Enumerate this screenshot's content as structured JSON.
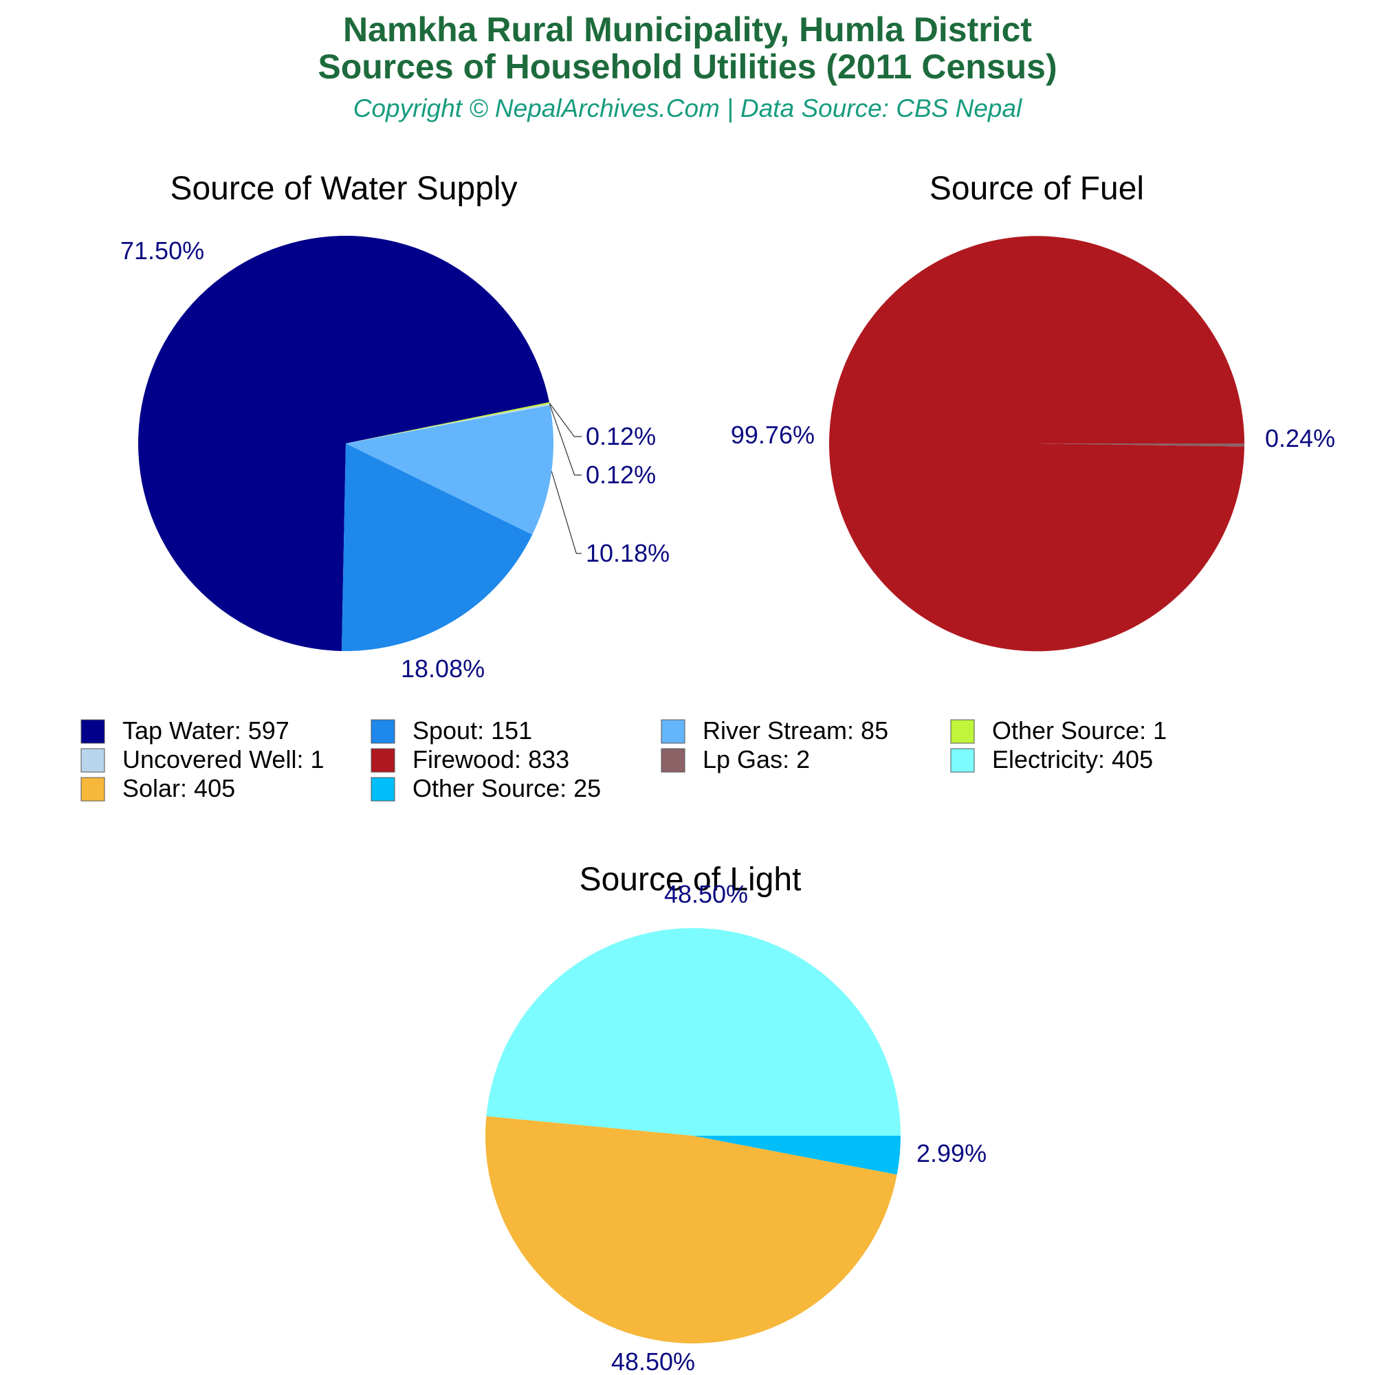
{
  "header": {
    "title_line1": "Namkha Rural Municipality, Humla District",
    "title_line2": "Sources of Household Utilities (2011 Census)",
    "subtitle": "Copyright © NepalArchives.Com | Data Source: CBS Nepal"
  },
  "chart_data": [
    {
      "type": "pie",
      "title": "Source of Water Supply",
      "slices": [
        {
          "name": "Tap Water",
          "value": 597,
          "percent_label": "71.50%",
          "color": "#00008b"
        },
        {
          "name": "Spout",
          "value": 151,
          "percent_label": "18.08%",
          "color": "#1e88eb"
        },
        {
          "name": "River Stream",
          "value": 85,
          "percent_label": "10.18%",
          "color": "#64b5fb"
        },
        {
          "name": "Uncovered Well",
          "value": 1,
          "percent_label": "0.12%",
          "color": "#b9d5ee"
        },
        {
          "name": "Other Source",
          "value": 1,
          "percent_label": "0.12%",
          "color": "#bff53a"
        }
      ]
    },
    {
      "type": "pie",
      "title": "Source of Fuel",
      "slices": [
        {
          "name": "Firewood",
          "value": 833,
          "percent_label": "99.76%",
          "color": "#b0181f"
        },
        {
          "name": "Lp Gas",
          "value": 2,
          "percent_label": "0.24%",
          "color": "#8b6266"
        }
      ]
    },
    {
      "type": "pie",
      "title": "Source of Light",
      "slices": [
        {
          "name": "Electricity",
          "value": 405,
          "percent_label": "48.50%",
          "color": "#7cfcfe"
        },
        {
          "name": "Solar",
          "value": 405,
          "percent_label": "48.50%",
          "color": "#f6b73a"
        },
        {
          "name": "Other Source",
          "value": 25,
          "percent_label": "2.99%",
          "color": "#00bef9"
        }
      ]
    }
  ],
  "legend": {
    "items": [
      {
        "text": "Tap Water: 597",
        "color": "#00008b"
      },
      {
        "text": "Spout: 151",
        "color": "#1e88eb"
      },
      {
        "text": "River Stream: 85",
        "color": "#64b5fb"
      },
      {
        "text": "Other Source: 1",
        "color": "#bff53a"
      },
      {
        "text": "Uncovered Well: 1",
        "color": "#b9d5ee"
      },
      {
        "text": "Firewood: 833",
        "color": "#b0181f"
      },
      {
        "text": "Lp Gas: 2",
        "color": "#8b6266"
      },
      {
        "text": "Electricity: 405",
        "color": "#7cfcfe"
      },
      {
        "text": "Solar: 405",
        "color": "#f6b73a"
      },
      {
        "text": "Other Source: 25",
        "color": "#00bef9"
      }
    ]
  }
}
